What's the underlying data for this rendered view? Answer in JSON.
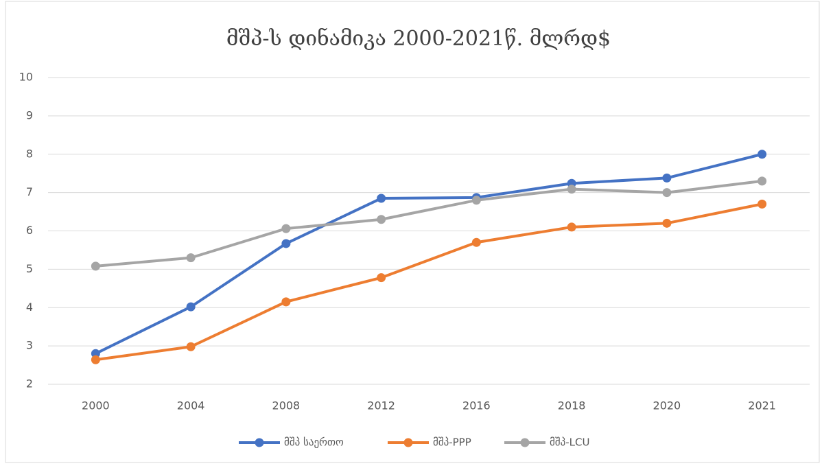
{
  "chart_data": {
    "type": "line",
    "title": "მშპ-ს დინამიკა 2000-2021წ. მლრდ$",
    "categories": [
      "2000",
      "2004",
      "2008",
      "2012",
      "2016",
      "2018",
      "2020",
      "2021"
    ],
    "series": [
      {
        "name": "მშპ საერთო",
        "color": "#4472c4",
        "values": [
          2.8,
          4.02,
          5.67,
          6.85,
          6.87,
          7.24,
          7.38,
          8.0
        ]
      },
      {
        "name": "მშპ-PPP",
        "color": "#ed7d31",
        "values": [
          2.64,
          2.98,
          4.15,
          4.78,
          5.7,
          6.1,
          6.2,
          6.7
        ]
      },
      {
        "name": "მშპ-LCU",
        "color": "#a5a5a5",
        "values": [
          5.08,
          5.3,
          6.06,
          6.3,
          6.8,
          7.09,
          7.0,
          7.3
        ]
      }
    ],
    "ylim": [
      2,
      10
    ],
    "yticks": [
      2,
      3,
      4,
      5,
      6,
      7,
      8,
      9,
      10
    ],
    "grid": true,
    "legend": "bottom"
  }
}
